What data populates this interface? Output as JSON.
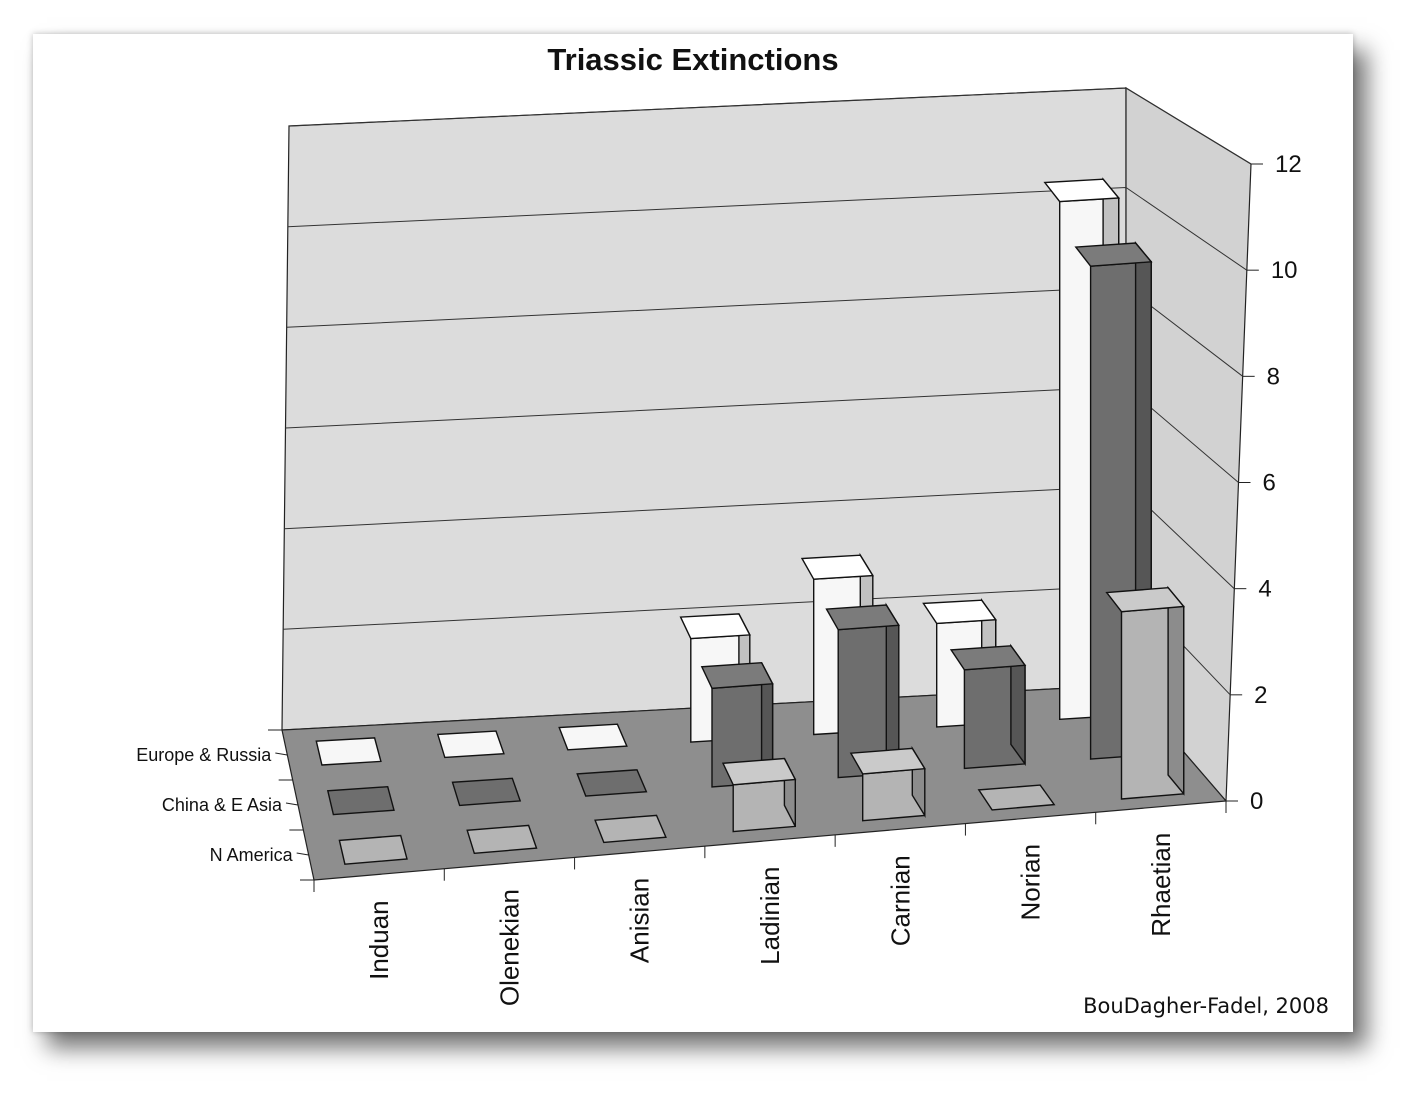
{
  "chart_data": {
    "type": "bar",
    "title": "Triassic Extinctions",
    "categories": [
      "Induan",
      "Olenekian",
      "Anisian",
      "Ladinian",
      "Carnian",
      "Norian",
      "Rhaetian"
    ],
    "series": [
      {
        "name": "Europe & Russia",
        "values": [
          0,
          0,
          0,
          2,
          3,
          2,
          10
        ],
        "color": "#f7f7f7"
      },
      {
        "name": "China & E Asia",
        "values": [
          0,
          0,
          0,
          2,
          3,
          2,
          10
        ],
        "color": "#6e6e6e"
      },
      {
        "name": "N America",
        "values": [
          0,
          0,
          0,
          1,
          1,
          0,
          4
        ],
        "color": "#b4b4b4"
      }
    ],
    "ylim": [
      0,
      12
    ],
    "yticks": [
      0,
      2,
      4,
      6,
      8,
      10,
      12
    ],
    "grid": true,
    "projection": "3d"
  },
  "credit": "BouDagher-Fadel, 2008"
}
